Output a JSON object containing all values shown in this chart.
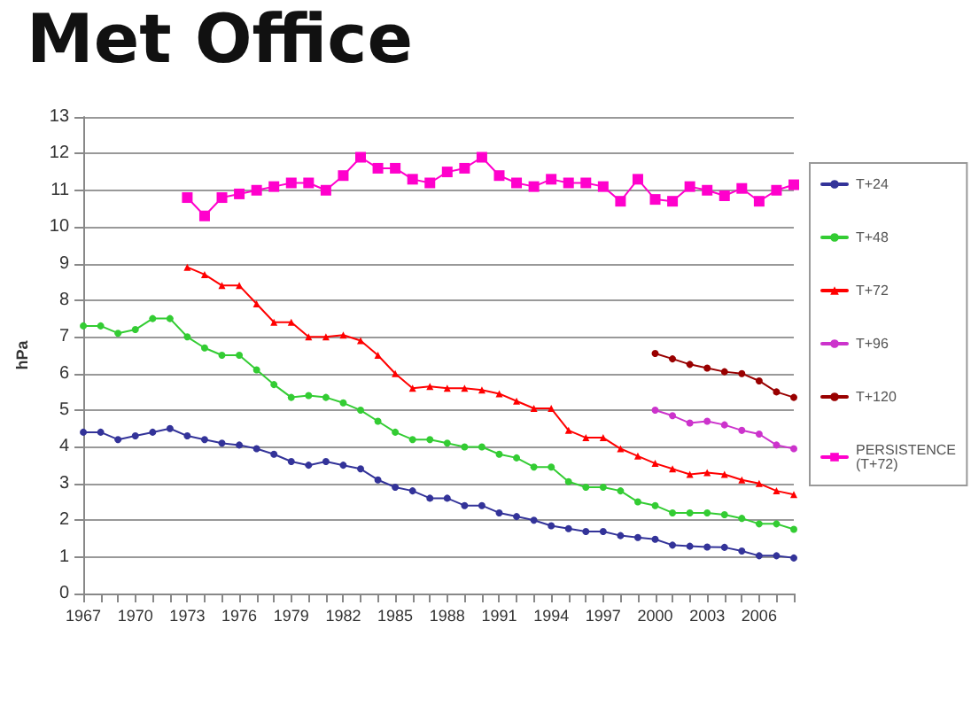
{
  "chart_data": {
    "type": "line",
    "title": "Met Office",
    "ylabel": "hPa",
    "categories": [
      "1967",
      null,
      null,
      "1970",
      null,
      null,
      "1973",
      null,
      null,
      "1976",
      null,
      null,
      "1979",
      null,
      null,
      "1982",
      null,
      null,
      "1985",
      null,
      null,
      "1988",
      null,
      null,
      "1991",
      null,
      null,
      "1994",
      null,
      null,
      "1997",
      null,
      null,
      "2000",
      null,
      null,
      "2003",
      null,
      null,
      "2006",
      null,
      null
    ],
    "series": [
      {
        "name": "T+24",
        "color": "#333399",
        "values": [
          4.4,
          4.4,
          4.2,
          4.3,
          4.4,
          4.5,
          4.3,
          4.2,
          4.1,
          4.05,
          3.95,
          3.8,
          3.6,
          3.5,
          3.6,
          3.5,
          3.4,
          3.1,
          2.9,
          2.8,
          2.6,
          2.6,
          2.4,
          2.4,
          2.2,
          2.1,
          2.0,
          1.85,
          1.77,
          1.69,
          1.69,
          1.58,
          1.53,
          1.48,
          1.32,
          1.29,
          1.27,
          1.26,
          1.16,
          1.03,
          1.03,
          0.97
        ]
      },
      {
        "name": "T+48",
        "color": "#33cc33",
        "values": [
          7.3,
          7.3,
          7.1,
          7.2,
          7.5,
          7.5,
          7.0,
          6.7,
          6.5,
          6.5,
          6.1,
          5.7,
          5.35,
          5.4,
          5.35,
          5.2,
          5.0,
          4.7,
          4.4,
          4.2,
          4.2,
          4.1,
          4.0,
          4.0,
          3.8,
          3.7,
          3.45,
          3.45,
          3.05,
          2.9,
          2.9,
          2.8,
          2.5,
          2.4,
          2.2,
          2.2,
          2.2,
          2.15,
          2.05,
          1.9,
          1.9,
          1.75
        ]
      },
      {
        "name": "T+72",
        "color": "#ff0000",
        "marker": "triangle",
        "values": [
          null,
          null,
          null,
          null,
          null,
          null,
          8.9,
          8.7,
          8.4,
          8.4,
          7.9,
          7.4,
          7.4,
          7.0,
          7.0,
          7.05,
          6.9,
          6.5,
          6.0,
          5.6,
          5.65,
          5.6,
          5.6,
          5.55,
          5.45,
          5.25,
          5.05,
          5.05,
          4.45,
          4.25,
          4.25,
          3.95,
          3.75,
          3.55,
          3.4,
          3.25,
          3.3,
          3.25,
          3.1,
          3.0,
          2.8,
          2.7
        ]
      },
      {
        "name": "T+96",
        "color": "#cc33cc",
        "values": [
          null,
          null,
          null,
          null,
          null,
          null,
          null,
          null,
          null,
          null,
          null,
          null,
          null,
          null,
          null,
          null,
          null,
          null,
          null,
          null,
          null,
          null,
          null,
          null,
          null,
          null,
          null,
          null,
          null,
          null,
          null,
          null,
          null,
          5.0,
          4.85,
          4.65,
          4.7,
          4.6,
          4.45,
          4.35,
          4.05,
          3.95
        ]
      },
      {
        "name": "T+120",
        "color": "#990000",
        "values": [
          null,
          null,
          null,
          null,
          null,
          null,
          null,
          null,
          null,
          null,
          null,
          null,
          null,
          null,
          null,
          null,
          null,
          null,
          null,
          null,
          null,
          null,
          null,
          null,
          null,
          null,
          null,
          null,
          null,
          null,
          null,
          null,
          null,
          6.55,
          6.4,
          6.25,
          6.15,
          6.05,
          6.0,
          5.8,
          5.5,
          5.35
        ]
      },
      {
        "name": "PERSISTENCE (T+72)",
        "color": "#ff00cc",
        "marker": "square",
        "values": [
          null,
          null,
          null,
          null,
          null,
          null,
          10.8,
          10.3,
          10.8,
          10.9,
          11.0,
          11.1,
          11.2,
          11.2,
          11.0,
          11.4,
          11.9,
          11.6,
          11.6,
          11.3,
          11.2,
          11.5,
          11.6,
          11.9,
          11.4,
          11.2,
          11.1,
          11.3,
          11.2,
          11.2,
          11.1,
          10.7,
          11.3,
          10.75,
          10.7,
          11.1,
          11.0,
          10.85,
          11.05,
          10.7,
          11.0,
          11.15
        ]
      }
    ],
    "ylim": [
      0,
      13
    ],
    "yticks": [
      0,
      1,
      2,
      3,
      4,
      5,
      6,
      7,
      8,
      9,
      10,
      11,
      12,
      13
    ],
    "grid": "y",
    "legend": "right",
    "marker": "circle",
    "line_style": "solid"
  }
}
